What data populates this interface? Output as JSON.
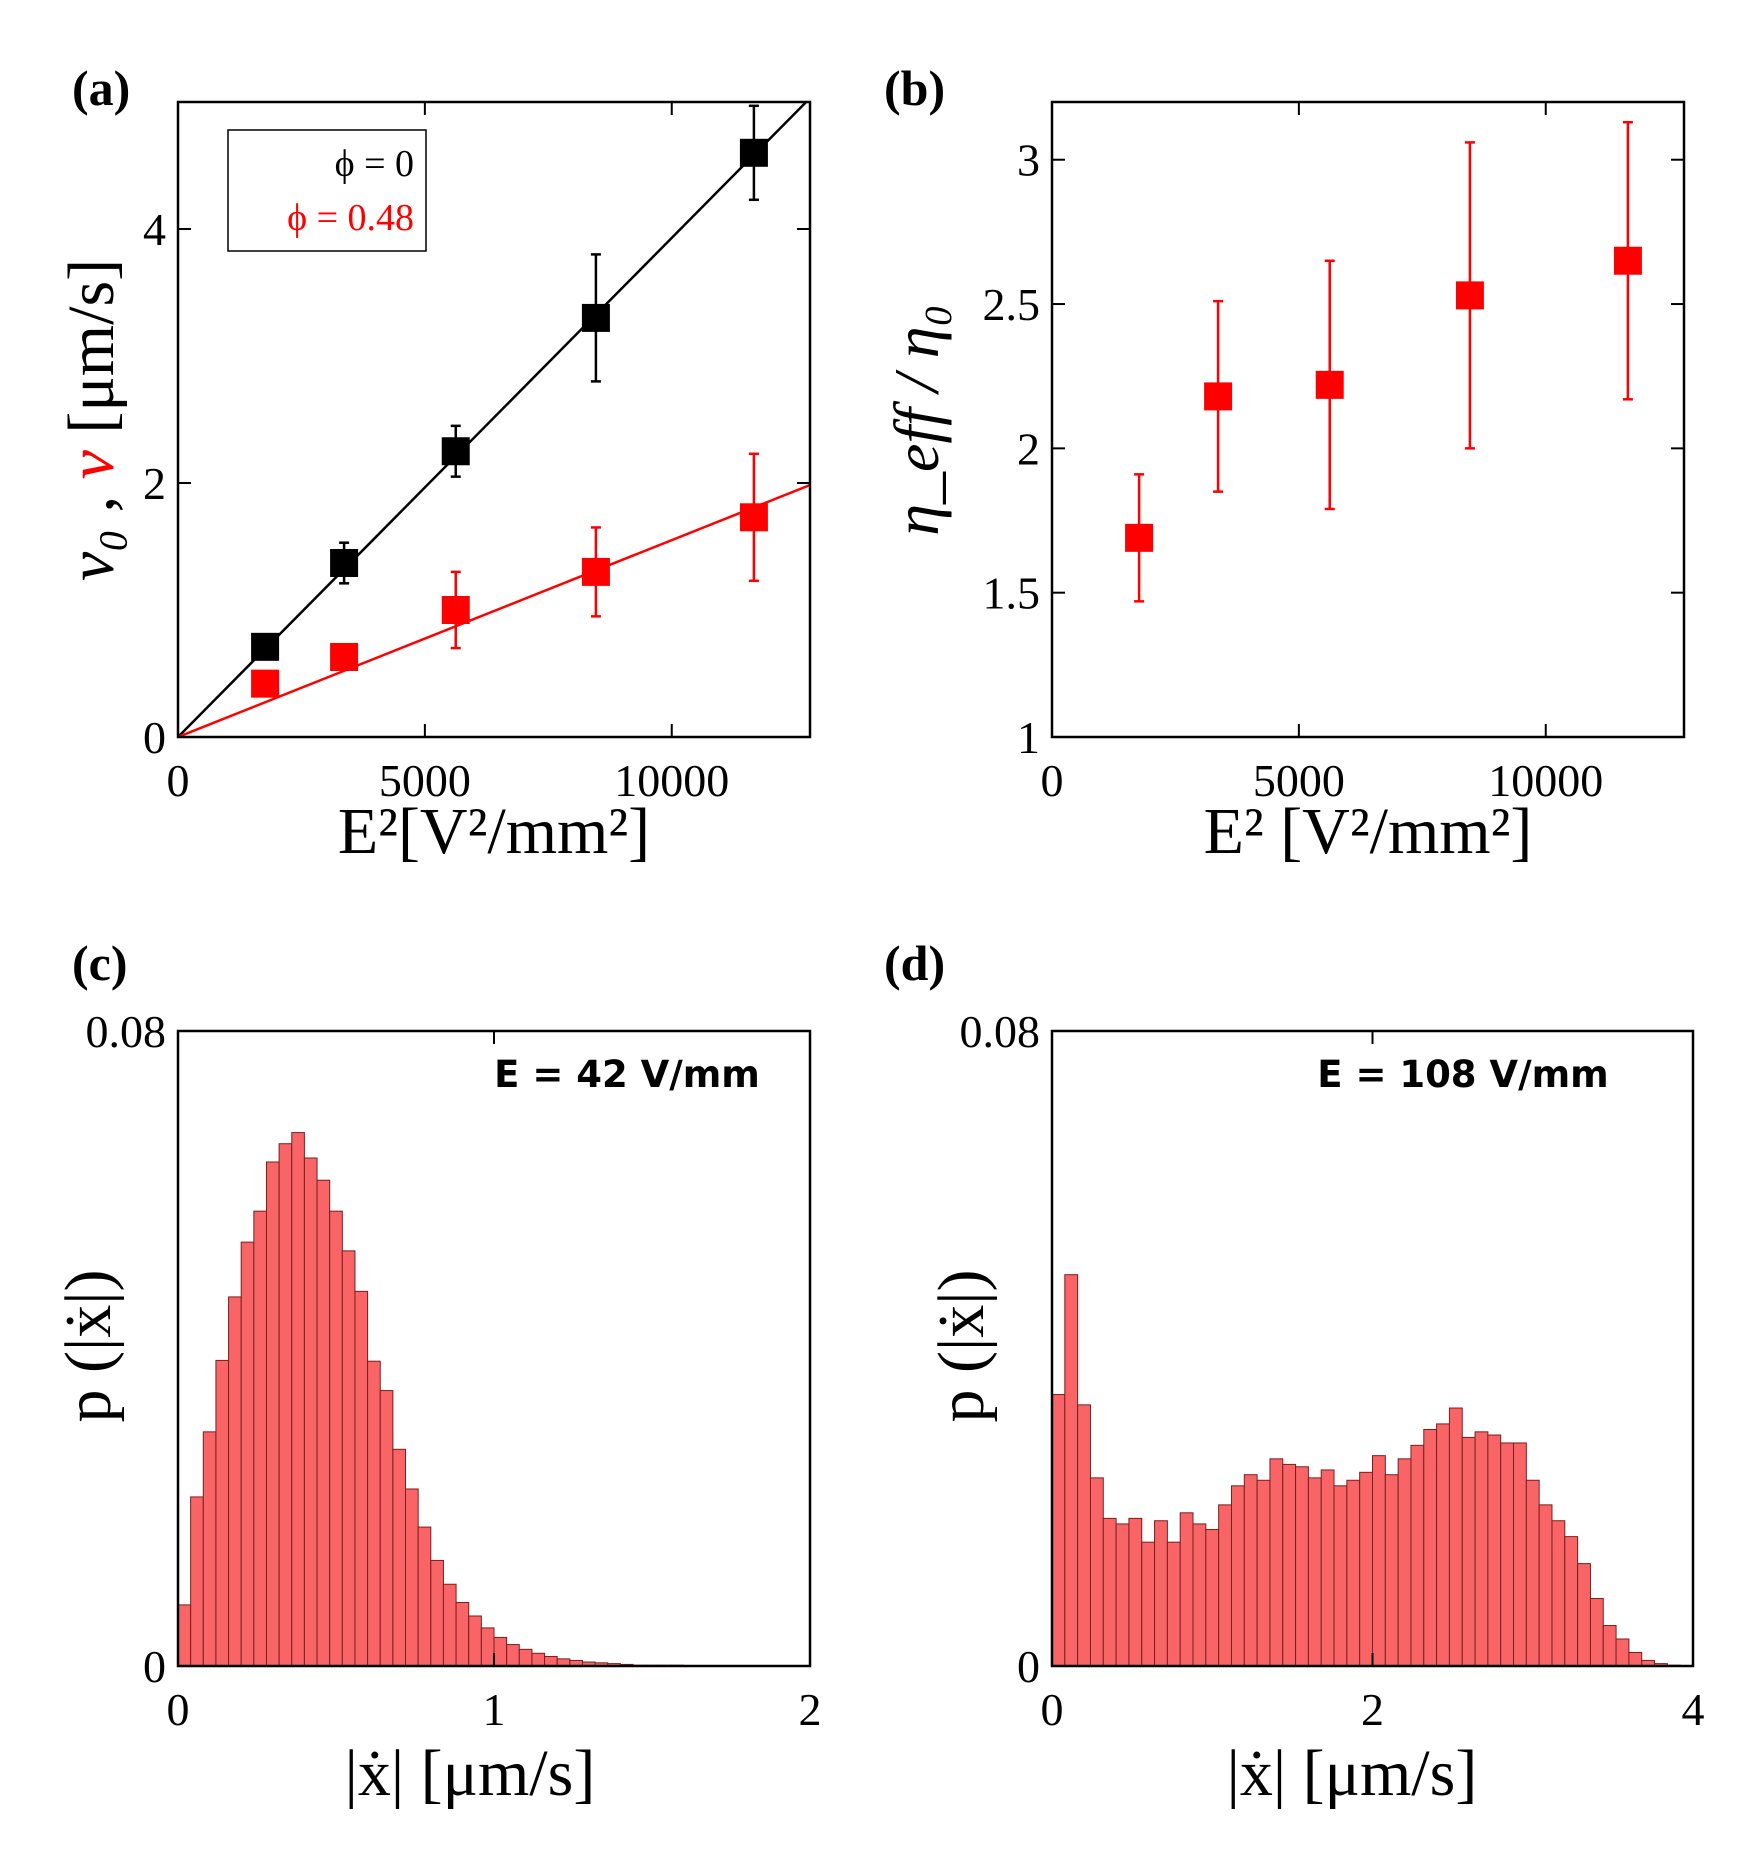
{
  "colors": {
    "black": "#000000",
    "red": "#ff0000",
    "hist_fill": "#f96566",
    "hist_edge": "#7a1e1e"
  },
  "chart_data": [
    {
      "id": "a",
      "panel_label": "(a)",
      "type": "scatter",
      "xlabel": "E²[V²/mm²]",
      "ylabel": {
        "parts": [
          "v₀",
          " ,",
          "v",
          " [μm/s]"
        ]
      },
      "xlim": [
        0,
        12800
      ],
      "ylim": [
        0,
        5
      ],
      "xticks": [
        0,
        5000,
        10000
      ],
      "xticklabels": [
        "0",
        "5000",
        "10000"
      ],
      "yticks": [
        0,
        2,
        4
      ],
      "yticklabels": [
        "0",
        "2",
        "4"
      ],
      "legend": {
        "position": "top-left",
        "entries": [
          "ϕ = 0",
          "ϕ = 0.48"
        ]
      },
      "series": [
        {
          "name": "ϕ = 0",
          "color": "black",
          "x": [
            1764,
            3364,
            5625,
            8464,
            11664
          ],
          "y": [
            0.71,
            1.37,
            2.25,
            3.3,
            4.6
          ],
          "err": [
            0.07,
            0.16,
            0.2,
            0.5,
            0.37
          ],
          "fit_slope": 0.000393
        },
        {
          "name": "ϕ = 0.48",
          "color": "red",
          "x": [
            1764,
            3364,
            5625,
            8464,
            11664
          ],
          "y": [
            0.42,
            0.63,
            1.0,
            1.3,
            1.73
          ],
          "err": [
            0.03,
            0.07,
            0.3,
            0.35,
            0.5
          ],
          "fit_slope": 0.000155
        }
      ]
    },
    {
      "id": "b",
      "panel_label": "(b)",
      "type": "scatter",
      "xlabel": "E² [V²/mm²]",
      "ylabel": "η_eff / η₀",
      "xlim": [
        0,
        12800
      ],
      "ylim": [
        1,
        3.2
      ],
      "xticks": [
        0,
        5000,
        10000
      ],
      "xticklabels": [
        "0",
        "5000",
        "10000"
      ],
      "yticks": [
        1,
        1.5,
        2,
        2.5,
        3
      ],
      "yticklabels": [
        "1",
        "1.5",
        "2",
        "2.5",
        "3"
      ],
      "series": [
        {
          "name": "η_eff/η₀",
          "color": "red",
          "x": [
            1764,
            3364,
            5625,
            8464,
            11664
          ],
          "y": [
            1.69,
            2.18,
            2.22,
            2.53,
            2.65
          ],
          "err": [
            0.22,
            0.33,
            0.43,
            0.53,
            0.48
          ]
        }
      ]
    },
    {
      "id": "c",
      "panel_label": "(c)",
      "type": "bar",
      "annotation": "E = 42 V/mm",
      "xlabel": "|ẋ| [μm/s]",
      "ylabel": "p (|ẋ|)",
      "xlim": [
        0,
        2
      ],
      "ylim": [
        0,
        0.08
      ],
      "xticks": [
        0,
        1,
        2
      ],
      "xticklabels": [
        "0",
        "1",
        "2"
      ],
      "yticks": [
        0,
        0.08
      ],
      "yticklabels": [
        "0",
        "0.08"
      ],
      "bin_start": 0,
      "bin_width": 0.04,
      "values": [
        0.0077,
        0.0213,
        0.0295,
        0.0385,
        0.0465,
        0.0534,
        0.0573,
        0.0635,
        0.0658,
        0.0672,
        0.064,
        0.0612,
        0.0573,
        0.0523,
        0.0472,
        0.0384,
        0.0347,
        0.0273,
        0.0223,
        0.0175,
        0.0133,
        0.0103,
        0.008,
        0.0063,
        0.0048,
        0.0036,
        0.0027,
        0.0021,
        0.0016,
        0.0012,
        0.0009,
        0.0007,
        0.0005,
        0.0004,
        0.0003,
        0.0002,
        0.0001,
        0.0001,
        0.0001,
        0.0001,
        0.0,
        0.0,
        0.0,
        0.0,
        0.0,
        0.0,
        0.0,
        0.0,
        0.0,
        0.0
      ]
    },
    {
      "id": "d",
      "panel_label": "(d)",
      "type": "bar",
      "annotation": "E = 108 V/mm",
      "xlabel": "|ẋ| [μm/s]",
      "ylabel": "p (|ẋ|)",
      "xlim": [
        0,
        4
      ],
      "ylim": [
        0,
        0.08
      ],
      "xticks": [
        0,
        2,
        4
      ],
      "xticklabels": [
        "0",
        "2",
        "4"
      ],
      "yticks": [
        0,
        0.08
      ],
      "yticklabels": [
        "0",
        "0.08"
      ],
      "bin_start": 0,
      "bin_width": 0.08,
      "values": [
        0.0342,
        0.0493,
        0.0329,
        0.0237,
        0.0186,
        0.0179,
        0.0186,
        0.0156,
        0.0183,
        0.0156,
        0.0193,
        0.0179,
        0.0172,
        0.0203,
        0.0227,
        0.0241,
        0.0234,
        0.0261,
        0.0254,
        0.0251,
        0.0237,
        0.0247,
        0.0227,
        0.0234,
        0.0244,
        0.0265,
        0.0241,
        0.0261,
        0.0278,
        0.0298,
        0.0305,
        0.0325,
        0.0288,
        0.0295,
        0.0291,
        0.0281,
        0.0281,
        0.0234,
        0.0203,
        0.0183,
        0.0163,
        0.0129,
        0.0085,
        0.0051,
        0.0034,
        0.0017,
        0.0007,
        0.0003,
        0.0001,
        0.0,
        0.0,
        0.0,
        0.0,
        0.0,
        0.0,
        0.0,
        0.0,
        0.0,
        0.0,
        0.0
      ]
    }
  ]
}
